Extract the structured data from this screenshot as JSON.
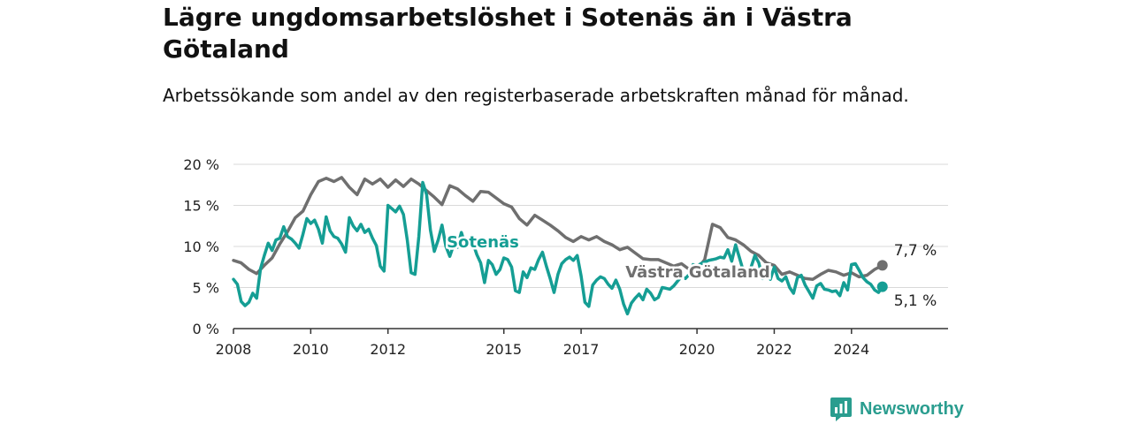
{
  "header": {
    "title": "Lägre ungdomsarbetslöshet i Sotenäs än i Västra Götaland",
    "subtitle": "Arbetssökande som andel av den registerbaserade arbetskraften månad för månad."
  },
  "brand": {
    "name": "Newsworthy",
    "icon": "newsworthy-chart-logo-icon",
    "color": "#2a9d8f"
  },
  "chart_data": {
    "type": "line",
    "title": "Lägre ungdomsarbetslöshet i Sotenäs än i Västra Götaland",
    "subtitle": "Arbetssökande som andel av den registerbaserade arbetskraften månad för månad.",
    "xlabel": "",
    "ylabel": "",
    "xlim": [
      2008,
      2026.5
    ],
    "ylim": [
      0,
      20
    ],
    "yticks": [
      0,
      5,
      10,
      15,
      20
    ],
    "ytick_labels": [
      "0 %",
      "5 %",
      "10 %",
      "15 %",
      "20 %"
    ],
    "xticks": [
      2008,
      2010,
      2012,
      2015,
      2017,
      2020,
      2022,
      2024
    ],
    "xtick_labels": [
      "2008",
      "2010",
      "2012",
      "2015",
      "2017",
      "2020",
      "2022",
      "2024"
    ],
    "grid": true,
    "series": [
      {
        "name": "Västra Götaland",
        "color": "#6f6f6f",
        "end_label": "7,7 %",
        "points": [
          [
            2008.0,
            8.3
          ],
          [
            2008.2,
            8.0
          ],
          [
            2008.4,
            7.2
          ],
          [
            2008.6,
            6.7
          ],
          [
            2008.8,
            7.7
          ],
          [
            2009.0,
            8.6
          ],
          [
            2009.2,
            10.3
          ],
          [
            2009.4,
            11.8
          ],
          [
            2009.6,
            13.5
          ],
          [
            2009.8,
            14.3
          ],
          [
            2010.0,
            16.3
          ],
          [
            2010.2,
            17.9
          ],
          [
            2010.4,
            18.3
          ],
          [
            2010.6,
            17.9
          ],
          [
            2010.8,
            18.4
          ],
          [
            2011.0,
            17.2
          ],
          [
            2011.2,
            16.3
          ],
          [
            2011.4,
            18.2
          ],
          [
            2011.6,
            17.6
          ],
          [
            2011.8,
            18.2
          ],
          [
            2012.0,
            17.2
          ],
          [
            2012.2,
            18.1
          ],
          [
            2012.4,
            17.3
          ],
          [
            2012.6,
            18.2
          ],
          [
            2012.8,
            17.6
          ],
          [
            2013.0,
            16.8
          ],
          [
            2013.2,
            16.0
          ],
          [
            2013.4,
            15.1
          ],
          [
            2013.6,
            17.4
          ],
          [
            2013.8,
            17.0
          ],
          [
            2014.0,
            16.2
          ],
          [
            2014.2,
            15.5
          ],
          [
            2014.4,
            16.7
          ],
          [
            2014.6,
            16.6
          ],
          [
            2014.8,
            15.9
          ],
          [
            2015.0,
            15.2
          ],
          [
            2015.2,
            14.8
          ],
          [
            2015.4,
            13.4
          ],
          [
            2015.6,
            12.6
          ],
          [
            2015.8,
            13.8
          ],
          [
            2016.0,
            13.2
          ],
          [
            2016.2,
            12.6
          ],
          [
            2016.4,
            11.9
          ],
          [
            2016.6,
            11.1
          ],
          [
            2016.8,
            10.6
          ],
          [
            2017.0,
            11.2
          ],
          [
            2017.2,
            10.8
          ],
          [
            2017.4,
            11.2
          ],
          [
            2017.6,
            10.6
          ],
          [
            2017.8,
            10.2
          ],
          [
            2018.0,
            9.6
          ],
          [
            2018.2,
            9.9
          ],
          [
            2018.4,
            9.2
          ],
          [
            2018.6,
            8.5
          ],
          [
            2018.8,
            8.4
          ],
          [
            2019.0,
            8.4
          ],
          [
            2019.2,
            8.0
          ],
          [
            2019.4,
            7.6
          ],
          [
            2019.6,
            7.9
          ],
          [
            2019.8,
            7.2
          ],
          [
            2020.0,
            7.2
          ],
          [
            2020.2,
            8.4
          ],
          [
            2020.4,
            12.7
          ],
          [
            2020.6,
            12.3
          ],
          [
            2020.8,
            11.1
          ],
          [
            2021.0,
            10.8
          ],
          [
            2021.2,
            10.2
          ],
          [
            2021.4,
            9.4
          ],
          [
            2021.6,
            8.9
          ],
          [
            2021.8,
            8.0
          ],
          [
            2022.0,
            7.7
          ],
          [
            2022.2,
            6.6
          ],
          [
            2022.4,
            6.9
          ],
          [
            2022.6,
            6.5
          ],
          [
            2022.8,
            6.1
          ],
          [
            2023.0,
            6.0
          ],
          [
            2023.2,
            6.6
          ],
          [
            2023.4,
            7.1
          ],
          [
            2023.6,
            6.9
          ],
          [
            2023.8,
            6.5
          ],
          [
            2024.0,
            6.8
          ],
          [
            2024.2,
            6.3
          ],
          [
            2024.4,
            6.5
          ],
          [
            2024.6,
            7.2
          ],
          [
            2024.8,
            7.7
          ]
        ]
      },
      {
        "name": "Sotenäs",
        "color": "#159e94",
        "end_label": "5,1 %",
        "points": [
          [
            2008.0,
            6.0
          ],
          [
            2008.1,
            5.4
          ],
          [
            2008.2,
            3.3
          ],
          [
            2008.3,
            2.8
          ],
          [
            2008.4,
            3.2
          ],
          [
            2008.5,
            4.3
          ],
          [
            2008.6,
            3.7
          ],
          [
            2008.7,
            7.3
          ],
          [
            2008.8,
            8.9
          ],
          [
            2008.9,
            10.4
          ],
          [
            2009.0,
            9.5
          ],
          [
            2009.1,
            10.8
          ],
          [
            2009.2,
            11.0
          ],
          [
            2009.3,
            12.4
          ],
          [
            2009.4,
            11.2
          ],
          [
            2009.5,
            10.9
          ],
          [
            2009.6,
            10.4
          ],
          [
            2009.7,
            9.8
          ],
          [
            2009.8,
            11.5
          ],
          [
            2009.9,
            13.4
          ],
          [
            2010.0,
            12.8
          ],
          [
            2010.1,
            13.2
          ],
          [
            2010.2,
            12.1
          ],
          [
            2010.3,
            10.4
          ],
          [
            2010.4,
            13.6
          ],
          [
            2010.5,
            11.9
          ],
          [
            2010.6,
            11.2
          ],
          [
            2010.7,
            11.0
          ],
          [
            2010.8,
            10.3
          ],
          [
            2010.9,
            9.3
          ],
          [
            2011.0,
            13.5
          ],
          [
            2011.1,
            12.5
          ],
          [
            2011.2,
            11.9
          ],
          [
            2011.3,
            12.7
          ],
          [
            2011.4,
            11.7
          ],
          [
            2011.5,
            12.1
          ],
          [
            2011.6,
            11.0
          ],
          [
            2011.7,
            10.1
          ],
          [
            2011.8,
            7.6
          ],
          [
            2011.9,
            7.0
          ],
          [
            2012.0,
            15.0
          ],
          [
            2012.1,
            14.6
          ],
          [
            2012.2,
            14.2
          ],
          [
            2012.3,
            14.9
          ],
          [
            2012.4,
            13.9
          ],
          [
            2012.5,
            10.8
          ],
          [
            2012.6,
            6.8
          ],
          [
            2012.7,
            6.6
          ],
          [
            2012.8,
            11.2
          ],
          [
            2012.9,
            17.8
          ],
          [
            2013.0,
            16.3
          ],
          [
            2013.1,
            12.0
          ],
          [
            2013.2,
            9.4
          ],
          [
            2013.3,
            10.8
          ],
          [
            2013.4,
            12.6
          ],
          [
            2013.5,
            10.0
          ],
          [
            2013.6,
            8.8
          ],
          [
            2013.7,
            10.2
          ],
          [
            2013.8,
            9.9
          ],
          [
            2013.9,
            11.7
          ],
          [
            2014.0,
            10.2
          ],
          [
            2014.1,
            10.3
          ],
          [
            2014.2,
            10.4
          ],
          [
            2014.3,
            9.0
          ],
          [
            2014.4,
            8.0
          ],
          [
            2014.5,
            5.6
          ],
          [
            2014.6,
            8.3
          ],
          [
            2014.7,
            7.8
          ],
          [
            2014.8,
            6.6
          ],
          [
            2014.9,
            7.2
          ],
          [
            2015.0,
            8.6
          ],
          [
            2015.1,
            8.4
          ],
          [
            2015.2,
            7.5
          ],
          [
            2015.3,
            4.6
          ],
          [
            2015.4,
            4.4
          ],
          [
            2015.5,
            6.9
          ],
          [
            2015.6,
            6.2
          ],
          [
            2015.7,
            7.4
          ],
          [
            2015.8,
            7.2
          ],
          [
            2015.9,
            8.4
          ],
          [
            2016.0,
            9.3
          ],
          [
            2016.1,
            7.6
          ],
          [
            2016.2,
            6.1
          ],
          [
            2016.3,
            4.4
          ],
          [
            2016.4,
            6.6
          ],
          [
            2016.5,
            7.9
          ],
          [
            2016.6,
            8.4
          ],
          [
            2016.7,
            8.7
          ],
          [
            2016.8,
            8.3
          ],
          [
            2016.9,
            8.9
          ],
          [
            2017.0,
            6.4
          ],
          [
            2017.1,
            3.2
          ],
          [
            2017.2,
            2.7
          ],
          [
            2017.3,
            5.3
          ],
          [
            2017.4,
            5.9
          ],
          [
            2017.5,
            6.3
          ],
          [
            2017.6,
            6.1
          ],
          [
            2017.7,
            5.4
          ],
          [
            2017.8,
            4.9
          ],
          [
            2017.9,
            5.9
          ],
          [
            2018.0,
            4.8
          ],
          [
            2018.1,
            3.0
          ],
          [
            2018.2,
            1.8
          ],
          [
            2018.3,
            3.1
          ],
          [
            2018.4,
            3.7
          ],
          [
            2018.5,
            4.2
          ],
          [
            2018.6,
            3.5
          ],
          [
            2018.7,
            4.8
          ],
          [
            2018.8,
            4.3
          ],
          [
            2018.9,
            3.5
          ],
          [
            2019.0,
            3.8
          ],
          [
            2019.1,
            5.0
          ],
          [
            2019.2,
            4.9
          ],
          [
            2019.3,
            4.8
          ],
          [
            2019.4,
            5.2
          ],
          [
            2019.5,
            5.8
          ],
          [
            2019.6,
            6.3
          ],
          [
            2019.7,
            6.1
          ],
          [
            2019.8,
            6.6
          ],
          [
            2019.9,
            7.8
          ],
          [
            2020.0,
            7.6
          ],
          [
            2020.1,
            7.9
          ],
          [
            2020.2,
            8.1
          ],
          [
            2020.3,
            8.3
          ],
          [
            2020.4,
            8.4
          ],
          [
            2020.5,
            8.5
          ],
          [
            2020.6,
            8.7
          ],
          [
            2020.7,
            8.6
          ],
          [
            2020.8,
            9.6
          ],
          [
            2020.9,
            8.2
          ],
          [
            2021.0,
            10.2
          ],
          [
            2021.1,
            8.6
          ],
          [
            2021.2,
            7.0
          ],
          [
            2021.3,
            6.2
          ],
          [
            2021.4,
            7.5
          ],
          [
            2021.5,
            8.9
          ],
          [
            2021.6,
            8.0
          ],
          [
            2021.7,
            6.1
          ],
          [
            2021.8,
            7.2
          ],
          [
            2021.9,
            6.0
          ],
          [
            2022.0,
            7.5
          ],
          [
            2022.1,
            6.1
          ],
          [
            2022.2,
            5.8
          ],
          [
            2022.3,
            6.3
          ],
          [
            2022.4,
            5.0
          ],
          [
            2022.5,
            4.3
          ],
          [
            2022.6,
            6.2
          ],
          [
            2022.7,
            6.5
          ],
          [
            2022.8,
            5.3
          ],
          [
            2022.9,
            4.5
          ],
          [
            2023.0,
            3.7
          ],
          [
            2023.1,
            5.2
          ],
          [
            2023.2,
            5.5
          ],
          [
            2023.3,
            4.8
          ],
          [
            2023.4,
            4.7
          ],
          [
            2023.5,
            4.5
          ],
          [
            2023.6,
            4.6
          ],
          [
            2023.7,
            4.0
          ],
          [
            2023.8,
            5.6
          ],
          [
            2023.9,
            4.7
          ],
          [
            2024.0,
            7.8
          ],
          [
            2024.1,
            7.9
          ],
          [
            2024.2,
            7.1
          ],
          [
            2024.3,
            6.2
          ],
          [
            2024.4,
            5.7
          ],
          [
            2024.5,
            5.4
          ],
          [
            2024.6,
            4.7
          ],
          [
            2024.7,
            4.4
          ],
          [
            2024.8,
            5.1
          ]
        ]
      }
    ]
  }
}
